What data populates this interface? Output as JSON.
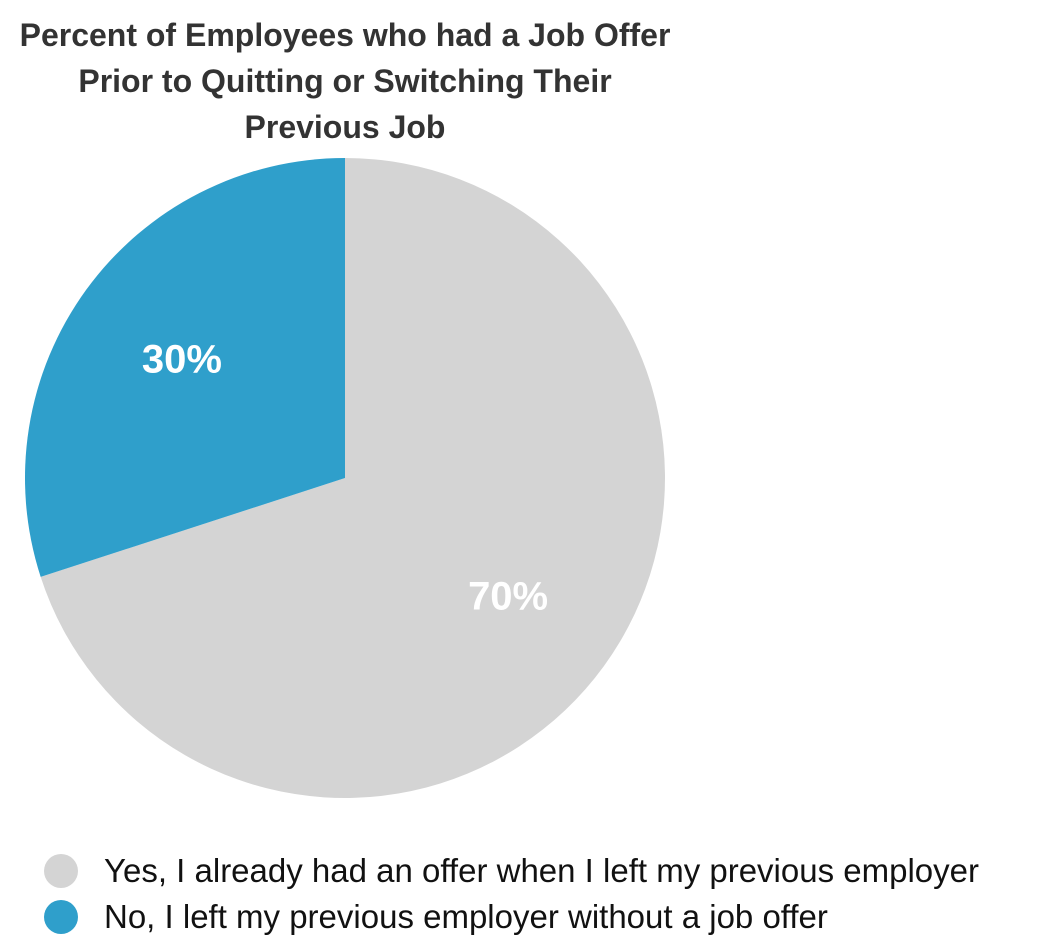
{
  "chart_data": {
    "type": "pie",
    "title_lines": [
      "Percent of Employees who had a Job Offer",
      "Prior to Quitting or Switching Their",
      "Previous Job"
    ],
    "slices": [
      {
        "label": "Yes, I already had an offer when I left my previous employer",
        "value": 70,
        "display": "70%",
        "color": "#d4d4d4"
      },
      {
        "label": "No, I left my previous employer without a job offer",
        "value": 30,
        "display": "30%",
        "color": "#2f9fcb"
      }
    ],
    "legend_position": "bottom-left",
    "label_color": "#ffffff"
  }
}
